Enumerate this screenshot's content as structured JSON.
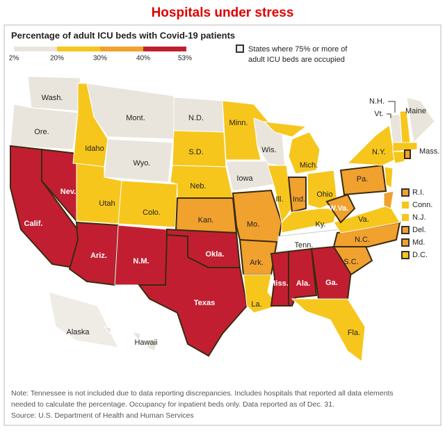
{
  "header": {
    "title": "Hospitals under stress",
    "subtitle": "Percentage of adult ICU beds with Covid-19 patients"
  },
  "legend": {
    "scale_labels": [
      "2%",
      "20%",
      "30%",
      "40%",
      "53%"
    ],
    "outline_note": [
      "States where 75% or more of",
      "adult ICU beds are occupied"
    ]
  },
  "states": [
    "Wash.",
    "Ore.",
    "Calif.",
    "Nev.",
    "Idaho",
    "Mont.",
    "Wyo.",
    "Utah",
    "Colo.",
    "Ariz.",
    "N.M.",
    "N.D.",
    "S.D.",
    "Neb.",
    "Kan.",
    "Okla.",
    "Texas",
    "Minn.",
    "Iowa",
    "Mo.",
    "Ark.",
    "La.",
    "Wis.",
    "Ill.",
    "Mich.",
    "Ind.",
    "Ohio",
    "Ky.",
    "Tenn.",
    "Miss.",
    "Ala.",
    "Ga.",
    "Fla.",
    "S.C.",
    "N.C.",
    "Va.",
    "W.Va.",
    "Pa.",
    "N.Y.",
    "N.H.",
    "Vt.",
    "Maine",
    "Mass.",
    "Alaska",
    "Hawaii"
  ],
  "small_states": [
    "R.I.",
    "Conn.",
    "N.J.",
    "Del.",
    "Md.",
    "D.C."
  ],
  "note": [
    "Note: Tennessee is not included due to data reporting discrepancies. Includes hospitals that reported all data elements",
    "needed to calculate the percentage. Occupancy for inpatient beds only. Data reported as of Dec. 31."
  ],
  "source": "Source: U.S. Department of Health and Human Services"
}
